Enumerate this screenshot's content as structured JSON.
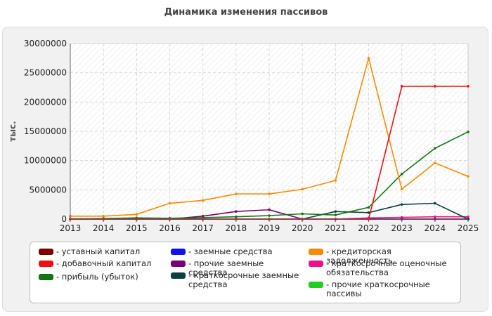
{
  "chart_data": {
    "type": "line",
    "title": "Динамика изменения пассивов",
    "ylabel": "тыс.",
    "xlabel": "",
    "x": [
      "2013",
      "2014",
      "2015",
      "2016",
      "2017",
      "2018",
      "2019",
      "2020",
      "2021",
      "2022",
      "2023",
      "2024",
      "2025"
    ],
    "ylim": [
      0,
      30000000
    ],
    "yticks": [
      "0",
      "5000000",
      "10000000",
      "15000000",
      "20000000",
      "25000000",
      "30000000"
    ],
    "grid": true,
    "legend_position": "bottom",
    "series": [
      {
        "name": "- уставный капитал",
        "color": "#7a0000",
        "values": [
          10000,
          10000,
          10000,
          10000,
          10000,
          10000,
          10000,
          10000,
          10000,
          10000,
          10000,
          10000,
          10000
        ]
      },
      {
        "name": "- добавочный капитал",
        "color": "#ee1111",
        "values": [
          0,
          0,
          0,
          0,
          0,
          0,
          0,
          0,
          0,
          0,
          22700000,
          22700000,
          22700000
        ]
      },
      {
        "name": "- прибыль (убыток)",
        "color": "#117711",
        "values": [
          50000,
          100000,
          200000,
          150000,
          250000,
          400000,
          600000,
          900000,
          700000,
          2000000,
          7700000,
          12100000,
          14900000
        ]
      },
      {
        "name": "- заемные средства",
        "color": "#1111ee",
        "values": [
          0,
          0,
          0,
          0,
          0,
          0,
          0,
          0,
          0,
          0,
          0,
          0,
          0
        ]
      },
      {
        "name": "- прочие заемные средства",
        "color": "#770077",
        "values": [
          0,
          0,
          0,
          0,
          500000,
          1300000,
          1600000,
          0,
          0,
          0,
          0,
          0,
          0
        ]
      },
      {
        "name": "- краткосрочные заемные средства",
        "color": "#0b4040",
        "values": [
          0,
          0,
          0,
          0,
          0,
          0,
          0,
          0,
          1300000,
          1100000,
          2500000,
          2700000,
          0
        ]
      },
      {
        "name": "- кредиторская задолженность",
        "color": "#ff8800",
        "values": [
          500000,
          500000,
          800000,
          2700000,
          3200000,
          4300000,
          4300000,
          5100000,
          6600000,
          27500000,
          5100000,
          9600000,
          7300000
        ]
      },
      {
        "name": "- краткосрочные оценочные обязательства",
        "color": "#ee1188",
        "values": [
          0,
          0,
          0,
          0,
          0,
          0,
          0,
          0,
          0,
          200000,
          300000,
          400000,
          400000
        ]
      },
      {
        "name": "- прочие краткосрочные пассивы",
        "color": "#22cc22",
        "values": [
          0,
          0,
          0,
          0,
          0,
          0,
          0,
          0,
          0,
          0,
          0,
          0,
          0
        ]
      }
    ]
  }
}
